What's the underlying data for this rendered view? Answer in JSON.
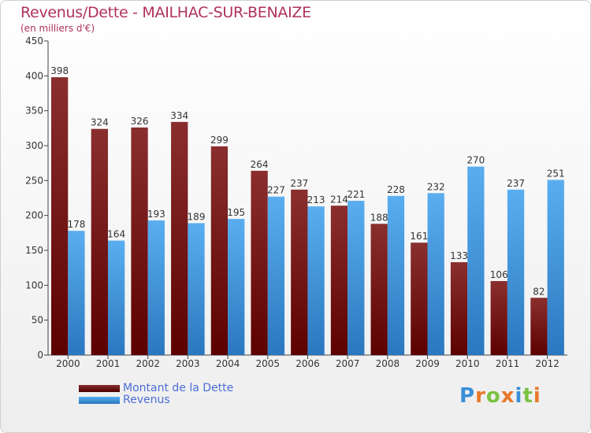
{
  "header": {
    "title": "Revenus/Dette - MAILHAC-SUR-BENAIZE",
    "subtitle": "(en milliers d'€)"
  },
  "chart_data": {
    "type": "bar",
    "title": "Revenus/Dette - MAILHAC-SUR-BENAIZE",
    "subtitle": "(en milliers d'€)",
    "xlabel": "",
    "ylabel": "",
    "categories": [
      "2000",
      "2001",
      "2002",
      "2003",
      "2004",
      "2005",
      "2006",
      "2007",
      "2008",
      "2009",
      "2010",
      "2011",
      "2012"
    ],
    "series": [
      {
        "name": "Montant de la Dette",
        "color": "#7a1a1a",
        "values": [
          398,
          324,
          326,
          334,
          299,
          264,
          237,
          214,
          188,
          161,
          133,
          106,
          82
        ]
      },
      {
        "name": "Revenus",
        "color": "#3a8fd8",
        "values": [
          178,
          164,
          193,
          189,
          195,
          227,
          213,
          221,
          228,
          232,
          270,
          237,
          251
        ]
      }
    ],
    "ylim": [
      0,
      450
    ],
    "yticks": [
      0,
      50,
      100,
      150,
      200,
      250,
      300,
      350,
      400,
      450
    ],
    "grid": false,
    "legend_position": "bottom-left",
    "data_labels": true
  },
  "brand": {
    "text": "Proxiti",
    "letters": [
      "P",
      "r",
      "o",
      "x",
      "i",
      "t",
      "i"
    ],
    "colors": [
      "#3a8fd8",
      "#e8782a",
      "#7cc242",
      "#e8782a",
      "#3a8fd8",
      "#7cc242",
      "#e8782a"
    ]
  }
}
